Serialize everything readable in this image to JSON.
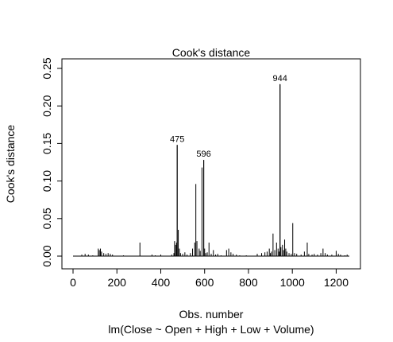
{
  "chart_data": {
    "type": "spike",
    "title": "Cook's distance",
    "xlabel": "Obs. number",
    "ylabel": "Cook's distance",
    "subtitle": "lm(Close ~ Open + High + Low + Volume)",
    "xlim": [
      0,
      1260
    ],
    "ylim": [
      0,
      0.25
    ],
    "x_ticks": [
      0,
      200,
      400,
      600,
      800,
      1000,
      1200
    ],
    "y_ticks": [
      0.0,
      0.05,
      0.1,
      0.15,
      0.2,
      0.25
    ],
    "y_tick_labels": [
      "0.00",
      "0.05",
      "0.10",
      "0.15",
      "0.20",
      "0.25"
    ],
    "grid": false,
    "legend": "none",
    "highlighted": [
      {
        "label": "944",
        "x": 944,
        "y": 0.229
      },
      {
        "label": "475",
        "x": 475,
        "y": 0.148
      },
      {
        "label": "596",
        "x": 596,
        "y": 0.128
      }
    ],
    "spikes": [
      [
        40,
        0.002
      ],
      [
        55,
        0.003
      ],
      [
        70,
        0.002
      ],
      [
        90,
        0.001
      ],
      [
        115,
        0.01
      ],
      [
        120,
        0.008
      ],
      [
        125,
        0.01
      ],
      [
        130,
        0.006
      ],
      [
        140,
        0.004
      ],
      [
        150,
        0.003
      ],
      [
        160,
        0.004
      ],
      [
        170,
        0.003
      ],
      [
        180,
        0.002
      ],
      [
        230,
        0.001
      ],
      [
        305,
        0.018
      ],
      [
        360,
        0.002
      ],
      [
        375,
        0.001
      ],
      [
        400,
        0.002
      ],
      [
        450,
        0.002
      ],
      [
        460,
        0.004
      ],
      [
        463,
        0.02
      ],
      [
        468,
        0.015
      ],
      [
        472,
        0.018
      ],
      [
        475,
        0.148
      ],
      [
        480,
        0.035
      ],
      [
        485,
        0.01
      ],
      [
        490,
        0.004
      ],
      [
        500,
        0.003
      ],
      [
        510,
        0.005
      ],
      [
        520,
        0.002
      ],
      [
        535,
        0.004
      ],
      [
        545,
        0.01
      ],
      [
        555,
        0.018
      ],
      [
        560,
        0.096
      ],
      [
        565,
        0.02
      ],
      [
        575,
        0.01
      ],
      [
        580,
        0.007
      ],
      [
        588,
        0.118
      ],
      [
        596,
        0.128
      ],
      [
        600,
        0.01
      ],
      [
        605,
        0.004
      ],
      [
        612,
        0.005
      ],
      [
        620,
        0.018
      ],
      [
        630,
        0.003
      ],
      [
        640,
        0.008
      ],
      [
        650,
        0.002
      ],
      [
        660,
        0.003
      ],
      [
        675,
        0.001
      ],
      [
        700,
        0.008
      ],
      [
        710,
        0.01
      ],
      [
        720,
        0.005
      ],
      [
        730,
        0.003
      ],
      [
        745,
        0.002
      ],
      [
        760,
        0.001
      ],
      [
        790,
        0.001
      ],
      [
        840,
        0.003
      ],
      [
        860,
        0.004
      ],
      [
        875,
        0.005
      ],
      [
        885,
        0.006
      ],
      [
        895,
        0.01
      ],
      [
        900,
        0.004
      ],
      [
        905,
        0.006
      ],
      [
        912,
        0.03
      ],
      [
        920,
        0.008
      ],
      [
        928,
        0.018
      ],
      [
        935,
        0.01
      ],
      [
        940,
        0.006
      ],
      [
        944,
        0.229
      ],
      [
        948,
        0.012
      ],
      [
        955,
        0.015
      ],
      [
        960,
        0.008
      ],
      [
        965,
        0.022
      ],
      [
        970,
        0.01
      ],
      [
        975,
        0.006
      ],
      [
        985,
        0.004
      ],
      [
        995,
        0.003
      ],
      [
        1002,
        0.044
      ],
      [
        1010,
        0.004
      ],
      [
        1020,
        0.003
      ],
      [
        1040,
        0.002
      ],
      [
        1055,
        0.006
      ],
      [
        1068,
        0.018
      ],
      [
        1075,
        0.003
      ],
      [
        1090,
        0.002
      ],
      [
        1100,
        0.003
      ],
      [
        1115,
        0.002
      ],
      [
        1130,
        0.004
      ],
      [
        1140,
        0.01
      ],
      [
        1150,
        0.004
      ],
      [
        1160,
        0.002
      ],
      [
        1180,
        0.002
      ],
      [
        1200,
        0.007
      ],
      [
        1210,
        0.003
      ],
      [
        1220,
        0.002
      ],
      [
        1240,
        0.001
      ],
      [
        1250,
        0.002
      ]
    ]
  }
}
